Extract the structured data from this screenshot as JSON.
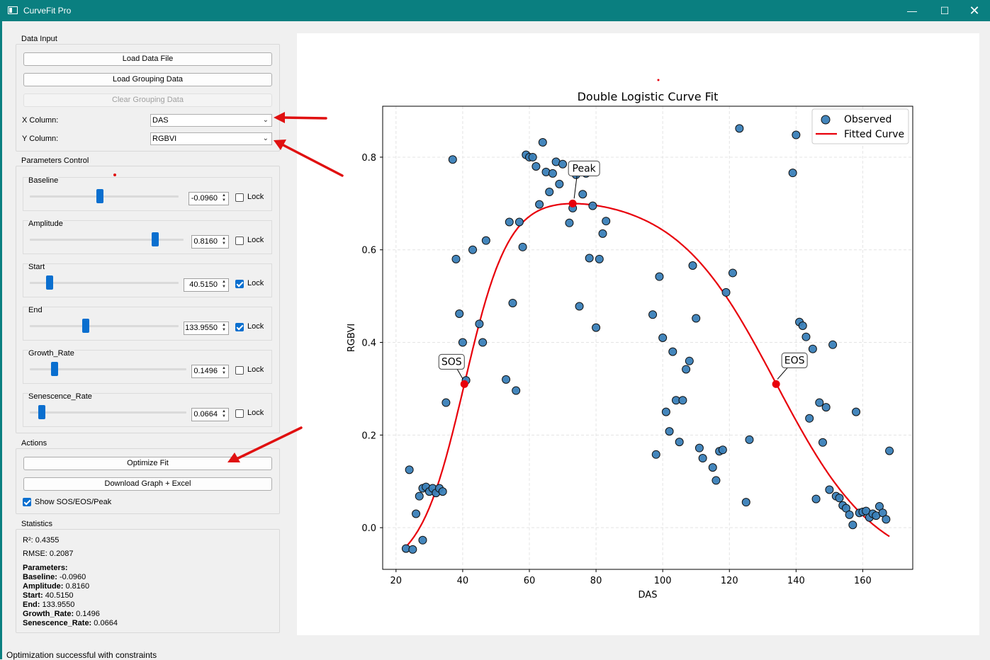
{
  "window": {
    "title": "CurveFit Pro",
    "minimize_icon": "minimize-icon",
    "maximize_icon": "maximize-icon",
    "close_icon": "close-icon"
  },
  "data_input": {
    "title": "Data Input",
    "load_data_label": "Load Data File",
    "load_grouping_label": "Load Grouping Data",
    "clear_grouping_label": "Clear Grouping Data",
    "x_label": "X Column:",
    "x_value": "DAS",
    "y_label": "Y Column:",
    "y_value": "RGBVI"
  },
  "parameters": {
    "title": "Parameters Control",
    "lock_label": "Lock",
    "items": [
      {
        "name": "Baseline",
        "value": "-0.0960",
        "locked": false,
        "slider_fraction": 0.45
      },
      {
        "name": "Amplitude",
        "value": "0.8160",
        "locked": false,
        "slider_fraction": 0.81
      },
      {
        "name": "Start",
        "value": "40.5150",
        "locked": true,
        "slider_fraction": 0.11
      },
      {
        "name": "End",
        "value": "133.9550",
        "locked": true,
        "slider_fraction": 0.37
      },
      {
        "name": "Growth_Rate",
        "value": "0.1496",
        "locked": false,
        "slider_fraction": 0.16
      },
      {
        "name": "Senescence_Rate",
        "value": "0.0664",
        "locked": false,
        "slider_fraction": 0.07
      }
    ]
  },
  "actions": {
    "title": "Actions",
    "optimize_label": "Optimize Fit",
    "download_label": "Download Graph + Excel",
    "show_markers_label": "Show SOS/EOS/Peak",
    "show_markers_checked": true
  },
  "statistics": {
    "title": "Statistics",
    "r2": "R²: 0.4355",
    "rmse": "RMSE: 0.2087",
    "params_heading": "Parameters:",
    "lines": [
      {
        "key": "Baseline:",
        "val": " -0.0960"
      },
      {
        "key": "Amplitude:",
        "val": " 0.8160"
      },
      {
        "key": "Start:",
        "val": " 40.5150"
      },
      {
        "key": "End:",
        "val": " 133.9550"
      },
      {
        "key": "Growth_Rate:",
        "val": " 0.1496"
      },
      {
        "key": "Senescence_Rate:",
        "val": " 0.0664"
      }
    ]
  },
  "status_bar": "Optimization successful with constraints",
  "colors": {
    "titlebar": "#0a7f80",
    "accent": "#0a6fcf",
    "fit": "#e8000b",
    "points": "#3a7fb8",
    "annotation_arrows": "#e01010"
  },
  "chart_data": {
    "type": "scatter",
    "title": "Double Logistic Curve Fit",
    "xlabel": "DAS",
    "ylabel": "RGBVI",
    "xlim": [
      16,
      175
    ],
    "ylim": [
      -0.09,
      0.91
    ],
    "xticks": [
      20,
      40,
      60,
      80,
      100,
      120,
      140,
      160
    ],
    "yticks": [
      0.0,
      0.2,
      0.4,
      0.6,
      0.8
    ],
    "grid": true,
    "legend_position": "top-right",
    "series": [
      {
        "name": "Observed",
        "kind": "scatter",
        "x": [
          23,
          24,
          25,
          26,
          27,
          28,
          28,
          29,
          30,
          31,
          32,
          33,
          34,
          35,
          37,
          38,
          39,
          40,
          41,
          43,
          45,
          46,
          47,
          53,
          54,
          55,
          56,
          57,
          58,
          59,
          60,
          61,
          62,
          63,
          64,
          65,
          66,
          67,
          68,
          69,
          70,
          72,
          73,
          74,
          75,
          76,
          77,
          78,
          79,
          80,
          81,
          82,
          83,
          97,
          98,
          99,
          100,
          101,
          102,
          103,
          104,
          105,
          106,
          107,
          108,
          109,
          110,
          111,
          112,
          115,
          116,
          117,
          118,
          119,
          121,
          123,
          125,
          126,
          139,
          140,
          141,
          142,
          143,
          144,
          145,
          146,
          147,
          148,
          149,
          150,
          151,
          152,
          153,
          154,
          155,
          156,
          157,
          158,
          159,
          160,
          161,
          162,
          163,
          164,
          165,
          166,
          167,
          168
        ],
        "y": [
          -0.045,
          0.125,
          -0.047,
          0.03,
          0.068,
          -0.027,
          0.085,
          0.088,
          0.078,
          0.085,
          0.075,
          0.085,
          0.078,
          0.27,
          0.795,
          0.58,
          0.462,
          0.4,
          0.318,
          0.6,
          0.44,
          0.4,
          0.62,
          0.32,
          0.66,
          0.485,
          0.296,
          0.66,
          0.606,
          0.805,
          0.8,
          0.8,
          0.78,
          0.698,
          0.832,
          0.768,
          0.725,
          0.765,
          0.79,
          0.742,
          0.785,
          0.658,
          0.69,
          0.762,
          0.478,
          0.72,
          0.765,
          0.582,
          0.695,
          0.432,
          0.58,
          0.635,
          0.662,
          0.46,
          0.158,
          0.542,
          0.41,
          0.25,
          0.208,
          0.38,
          0.275,
          0.185,
          0.275,
          0.342,
          0.36,
          0.566,
          0.452,
          0.172,
          0.15,
          0.13,
          0.102,
          0.165,
          0.168,
          0.508,
          0.55,
          0.862,
          0.055,
          0.19,
          0.766,
          0.848,
          0.444,
          0.436,
          0.412,
          0.236,
          0.386,
          0.062,
          0.27,
          0.184,
          0.26,
          0.082,
          0.395,
          0.068,
          0.064,
          0.048,
          0.042,
          0.028,
          0.006,
          0.25,
          0.032,
          0.034,
          0.036,
          0.022,
          0.03,
          0.026,
          0.046,
          0.032,
          0.018,
          0.166
        ]
      },
      {
        "name": "Fitted Curve",
        "kind": "line"
      }
    ],
    "fit_params": {
      "baseline": -0.096,
      "amplitude": 0.816,
      "start": 40.515,
      "end": 133.955,
      "growth_rate": 0.1496,
      "senescence_rate": 0.0664
    },
    "markers": [
      {
        "label": "SOS",
        "x": 40.5,
        "y": 0.31
      },
      {
        "label": "Peak",
        "x": 73,
        "y": 0.7
      },
      {
        "label": "EOS",
        "x": 134,
        "y": 0.31
      }
    ]
  }
}
